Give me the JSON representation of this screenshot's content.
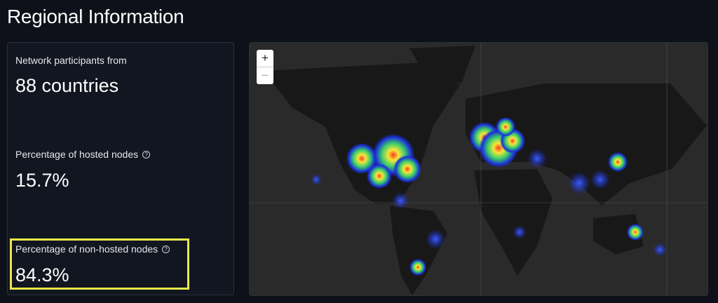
{
  "header": {
    "title": "Regional Information"
  },
  "stats": [
    {
      "label": "Network participants from",
      "value": "88 countries"
    },
    {
      "label": "Percentage of hosted nodes",
      "value": "15.7%"
    },
    {
      "label": "Percentage of non-hosted nodes",
      "value": "84.3%"
    }
  ],
  "map": {
    "zoom_in": "+",
    "zoom_out": "−"
  }
}
